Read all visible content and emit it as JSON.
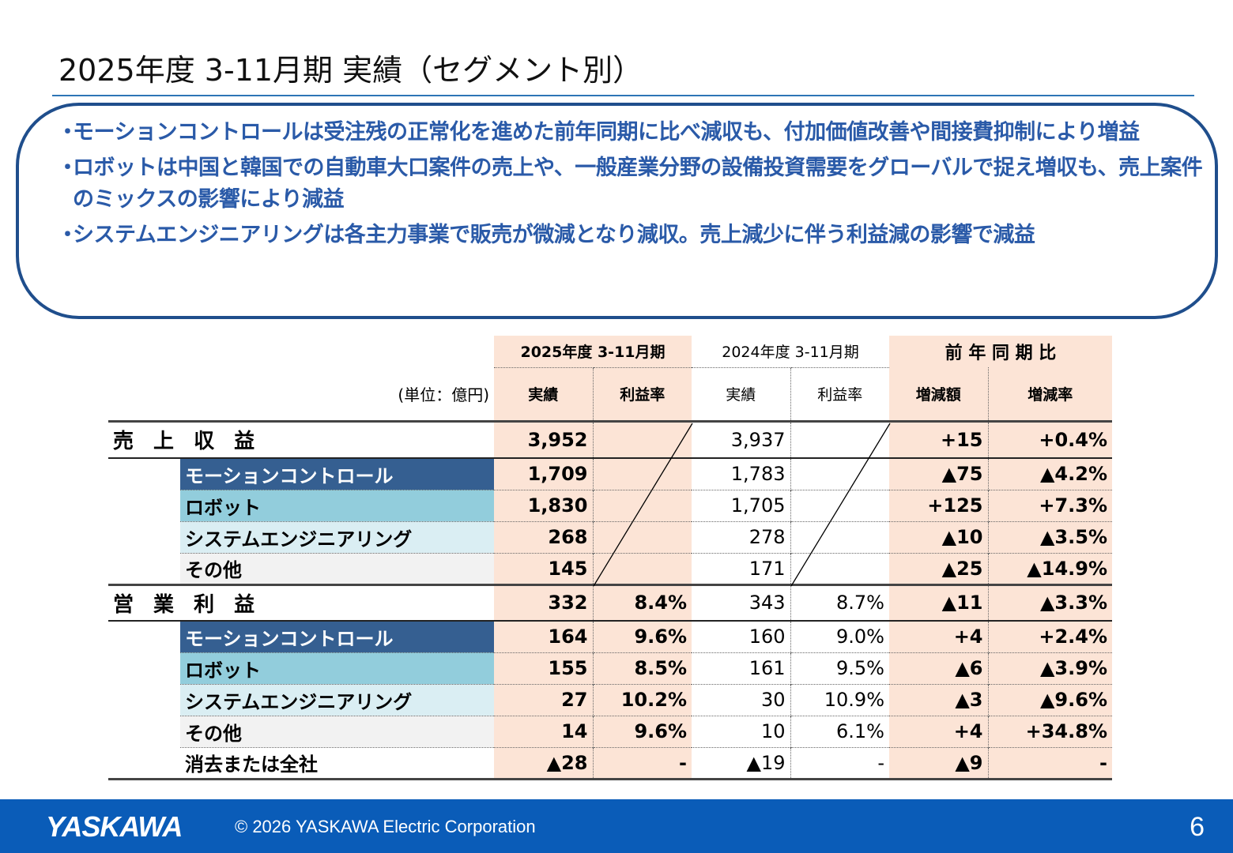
{
  "title": "2025年度 3-11月期 実績（セグメント別）",
  "summary": [
    "モーションコントロールは受注残の正常化を進めた前年同期に比べ減収も、付加価値改善や間接費抑制により増益",
    "ロボットは中国と韓国での自動車大口案件の売上や、一般産業分野の設備投資需要をグローバルで捉え増収も、売上案件のミックスの影響により減益",
    "システムエンジニアリングは各主力事業で販売が微減となり減収。売上減少に伴う利益減の影響で減益"
  ],
  "bullet": "・",
  "table": {
    "unit": "(単位：億円)",
    "period_current": "2025年度 3-11月期",
    "period_prior": "2024年度 3-11月期",
    "yoy": "前 年 同 期 比",
    "col_actual": "実績",
    "col_margin": "利益率",
    "col_change": "増減額",
    "col_change_rate": "増減率",
    "sections": [
      {
        "label": "売 上 収 益",
        "total": [
          "3,952",
          "",
          "3,937",
          "",
          "+15",
          "+0.4%"
        ],
        "rows": [
          {
            "label": "モーションコントロール",
            "style": "motion",
            "values": [
              "1,709",
              "",
              "1,783",
              "",
              "▲75",
              "▲4.2%"
            ]
          },
          {
            "label": "ロボット",
            "style": "robot",
            "values": [
              "1,830",
              "",
              "1,705",
              "",
              "+125",
              "+7.3%"
            ]
          },
          {
            "label": "システムエンジニアリング",
            "style": "system",
            "values": [
              "268",
              "",
              "278",
              "",
              "▲10",
              "▲3.5%"
            ]
          },
          {
            "label": "その他",
            "style": "other",
            "values": [
              "145",
              "",
              "171",
              "",
              "▲25",
              "▲14.9%"
            ]
          }
        ]
      },
      {
        "label": "営 業 利 益",
        "total": [
          "332",
          "8.4%",
          "343",
          "8.7%",
          "▲11",
          "▲3.3%"
        ],
        "rows": [
          {
            "label": "モーションコントロール",
            "style": "motion",
            "values": [
              "164",
              "9.6%",
              "160",
              "9.0%",
              "+4",
              "+2.4%"
            ]
          },
          {
            "label": "ロボット",
            "style": "robot",
            "values": [
              "155",
              "8.5%",
              "161",
              "9.5%",
              "▲6",
              "▲3.9%"
            ]
          },
          {
            "label": "システムエンジニアリング",
            "style": "system",
            "values": [
              "27",
              "10.2%",
              "30",
              "10.9%",
              "▲3",
              "▲9.6%"
            ]
          },
          {
            "label": "その他",
            "style": "other",
            "values": [
              "14",
              "9.6%",
              "10",
              "6.1%",
              "+4",
              "+34.8%"
            ]
          },
          {
            "label": "消去または全社",
            "style": "elim",
            "values": [
              "▲28",
              "-",
              "▲19",
              "-",
              "▲9",
              "-"
            ]
          }
        ]
      }
    ]
  },
  "footer": {
    "logo": "YASKAWA",
    "copyright": "© 2026 YASKAWA Electric Corporation",
    "page": "6"
  },
  "colors": {
    "accent_blue": "#2a5aa8",
    "footer_blue": "#0a5cb8",
    "peach": "#fce4d6",
    "motion": "#355f91",
    "robot": "#92cddc",
    "system": "#daeef3",
    "other": "#f2f2f2"
  }
}
